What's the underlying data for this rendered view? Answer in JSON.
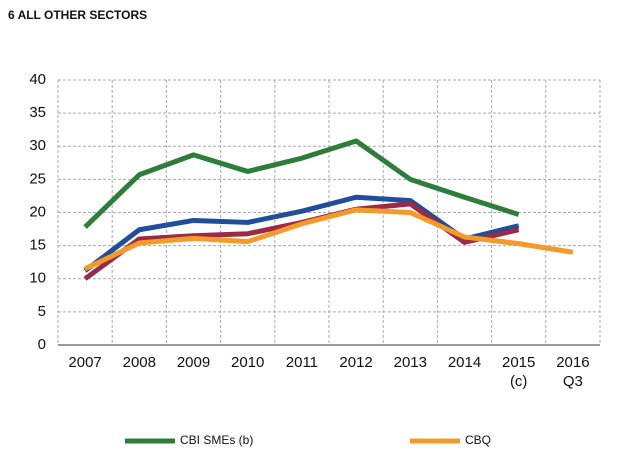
{
  "chart_data": {
    "type": "line",
    "title": "6 ALL OTHER SECTORS",
    "categories": [
      "2007",
      "2008",
      "2009",
      "2010",
      "2011",
      "2012",
      "2013",
      "2014",
      [
        "2015",
        "(c)"
      ],
      [
        "2016",
        "Q3"
      ]
    ],
    "series": [
      {
        "name": "CBI SMEs (b)",
        "color": "#2e7d3a",
        "values": [
          17.8,
          25.7,
          28.7,
          26.2,
          28.2,
          30.8,
          25.0,
          22.3,
          19.7,
          null
        ]
      },
      {
        "color": "#1f4e9a",
        "values": [
          11.2,
          17.4,
          18.8,
          18.5,
          20.2,
          22.3,
          21.8,
          16.0,
          18.0,
          null
        ]
      },
      {
        "color": "#9b2a45",
        "values": [
          10.0,
          16.0,
          16.5,
          16.8,
          18.5,
          20.5,
          21.3,
          15.5,
          17.4,
          null
        ]
      },
      {
        "name": "CBQ",
        "color": "#f39a2a",
        "values": [
          11.5,
          15.4,
          16.1,
          15.6,
          18.3,
          20.4,
          20.0,
          16.3,
          15.3,
          14.0
        ]
      }
    ],
    "ylim": [
      0,
      40
    ],
    "yticks": [
      0,
      5,
      10,
      15,
      20,
      25,
      30,
      35,
      40
    ],
    "grid": true
  }
}
